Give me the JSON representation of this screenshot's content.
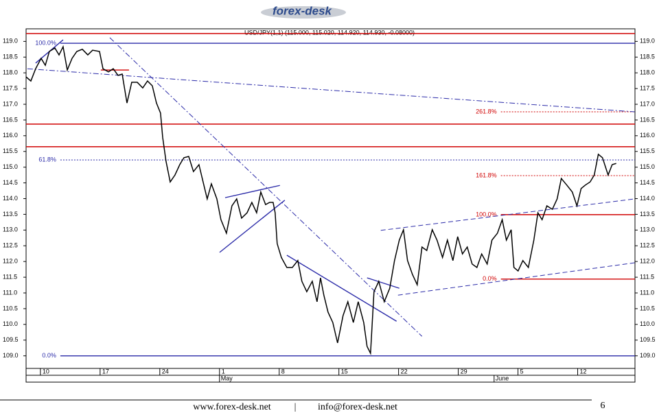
{
  "logo": "forex-desk",
  "chart_data": {
    "type": "line",
    "title": "USD/JPY(1,1) (115.000, 115.020, 114.920, 114.930, -0.08000)",
    "color": "#000000",
    "x": [
      -1.2,
      -0.8,
      -0.4,
      0.06,
      0.41,
      0.75,
      1.21,
      1.56,
      1.9,
      2.25,
      2.65,
      3.05,
      3.51,
      3.97,
      4.37,
      4.95,
      5.24,
      5.7,
      6.1,
      6.5,
      6.85,
      7.25,
      7.65,
      8.11,
      8.57,
      8.97,
      9.37,
      9.72,
      10.06,
      10.24,
      10.52,
      10.87,
      11.27,
      11.67,
      12.02,
      12.42,
      12.82,
      13.28,
      13.69,
      13.97,
      14.32,
      14.78,
      15.12,
      15.58,
      16.04,
      16.44,
      16.85,
      17.31,
      17.71,
      18.11,
      18.46,
      18.86,
      19.2,
      19.49,
      19.66,
      19.83,
      20.18,
      20.64,
      21.1,
      21.56,
      21.9,
      22.31,
      22.77,
      23.17,
      23.46,
      23.74,
      24.09,
      24.49,
      24.89,
      25.35,
      25.75,
      26.21,
      26.62,
      27.08,
      27.36,
      27.65,
      27.94,
      28.34,
      28.8,
      29.26,
      29.66,
      30.06,
      30.41,
      30.75,
      31.16,
      31.56,
      31.96,
      32.36,
      32.82,
      33.22,
      33.68,
      34.09,
      34.55,
      34.95,
      35.35,
      35.75,
      36.16,
      36.56,
      36.96,
      37.42,
      37.82,
      38.28,
      38.68,
      39.03,
      39.43,
      39.66,
      40.01,
      40.41,
      40.87,
      41.33,
      41.67,
      42.02,
      42.42,
      42.88,
      43.28,
      43.63,
      44.09,
      44.55,
      44.94,
      45.29,
      45.64,
      46.04,
      46.39,
      46.73,
      47.08,
      47.55,
      47.89,
      48.23
    ],
    "values": [
      117.87,
      117.74,
      118.13,
      118.46,
      118.24,
      118.68,
      118.79,
      118.57,
      118.83,
      118.09,
      118.46,
      118.68,
      118.75,
      118.57,
      118.72,
      118.68,
      118.13,
      118.03,
      118.13,
      117.92,
      117.96,
      117.04,
      117.7,
      117.7,
      117.52,
      117.74,
      117.59,
      117.04,
      116.72,
      115.95,
      115.19,
      114.53,
      114.75,
      115.08,
      115.3,
      115.34,
      114.86,
      115.08,
      114.43,
      113.99,
      114.47,
      113.99,
      113.33,
      112.9,
      113.77,
      113.99,
      113.38,
      113.55,
      113.88,
      113.55,
      114.21,
      113.81,
      113.88,
      113.88,
      113.55,
      112.57,
      112.13,
      111.81,
      111.81,
      112.03,
      111.37,
      111.04,
      111.37,
      110.72,
      111.48,
      110.93,
      110.39,
      110.06,
      109.41,
      110.28,
      110.72,
      110.06,
      110.72,
      110.06,
      109.3,
      109.08,
      111.04,
      111.37,
      110.72,
      111.15,
      112.03,
      112.68,
      113.01,
      112.03,
      111.59,
      111.26,
      112.46,
      112.35,
      113.01,
      112.68,
      112.13,
      112.68,
      112.03,
      112.79,
      112.24,
      112.46,
      111.92,
      111.81,
      112.24,
      111.92,
      112.68,
      112.9,
      113.33,
      112.68,
      113.01,
      111.81,
      111.7,
      112.03,
      111.81,
      112.68,
      113.55,
      113.33,
      113.77,
      113.66,
      113.99,
      114.64,
      114.43,
      114.21,
      113.77,
      114.32,
      114.43,
      114.53,
      114.75,
      115.41,
      115.3,
      114.75,
      115.08,
      115.12
    ],
    "xlim": [
      -1.2,
      49.8
    ],
    "ylim": [
      108.6,
      119.4
    ],
    "xticks": [
      {
        "value": 0,
        "label": "10"
      },
      {
        "value": 5,
        "label": "17"
      },
      {
        "value": 10,
        "label": "24"
      },
      {
        "value": 15,
        "label": "1"
      },
      {
        "value": 20,
        "label": "8"
      },
      {
        "value": 25,
        "label": "15"
      },
      {
        "value": 30,
        "label": "22"
      },
      {
        "value": 35,
        "label": "29"
      },
      {
        "value": 40,
        "label": "5"
      },
      {
        "value": 45,
        "label": "12"
      }
    ],
    "month_ticks": [
      {
        "value": 15,
        "label": "May"
      },
      {
        "value": 38,
        "label": "June"
      }
    ],
    "yticks": [
      {
        "value": 109,
        "label": "109.0"
      },
      {
        "value": 109.5,
        "label": "109.5"
      },
      {
        "value": 110,
        "label": "110.0"
      },
      {
        "value": 110.5,
        "label": "110.5"
      },
      {
        "value": 111,
        "label": "111.0"
      },
      {
        "value": 111.5,
        "label": "111.5"
      },
      {
        "value": 112,
        "label": "112.0"
      },
      {
        "value": 112.5,
        "label": "112.5"
      },
      {
        "value": 113,
        "label": "113.0"
      },
      {
        "value": 113.5,
        "label": "113.5"
      },
      {
        "value": 114,
        "label": "114.0"
      },
      {
        "value": 114.5,
        "label": "114.5"
      },
      {
        "value": 115,
        "label": "115.0"
      },
      {
        "value": 115.5,
        "label": "115.5"
      },
      {
        "value": 116,
        "label": "116.0"
      },
      {
        "value": 116.5,
        "label": "116.5"
      },
      {
        "value": 117,
        "label": "117.0"
      },
      {
        "value": 117.5,
        "label": "117.5"
      },
      {
        "value": 118,
        "label": "118.0"
      },
      {
        "value": 118.5,
        "label": "118.5"
      },
      {
        "value": 119,
        "label": "119.0"
      }
    ],
    "lines": [
      {
        "x": [
          -1.2,
          49.8
        ],
        "y": [
          119.25,
          119.25
        ],
        "color": "#d00000",
        "style": "solid"
      },
      {
        "x": [
          1.67,
          49.8
        ],
        "y": [
          118.94,
          118.94
        ],
        "color": "#2a2aa8",
        "style": "solid",
        "label": "100.0%"
      },
      {
        "x": [
          -1.2,
          49.8
        ],
        "y": [
          116.37,
          116.37
        ],
        "color": "#d00000",
        "style": "solid"
      },
      {
        "x": [
          -1.2,
          49.8
        ],
        "y": [
          115.65,
          115.65
        ],
        "color": "#d00000",
        "style": "solid"
      },
      {
        "x": [
          1.67,
          49.8
        ],
        "y": [
          115.23,
          115.23
        ],
        "color": "#2a2aa8",
        "style": "dotted",
        "label": "61.8%"
      },
      {
        "x": [
          1.67,
          49.8
        ],
        "y": [
          109.0,
          109.0
        ],
        "color": "#2a2aa8",
        "style": "solid",
        "label": "0.0%"
      },
      {
        "x": [
          38.57,
          49.8
        ],
        "y": [
          116.76,
          116.76
        ],
        "color": "#d00000",
        "style": "dotted",
        "label": "261.8%"
      },
      {
        "x": [
          38.57,
          49.8
        ],
        "y": [
          114.73,
          114.73
        ],
        "color": "#d00000",
        "style": "dotted",
        "label": "161.8%"
      },
      {
        "x": [
          38.57,
          49.8
        ],
        "y": [
          113.49,
          113.49
        ],
        "color": "#d00000",
        "style": "solid",
        "label": "100.0%"
      },
      {
        "x": [
          38.57,
          49.8
        ],
        "y": [
          111.44,
          111.44
        ],
        "color": "#d00000",
        "style": "solid",
        "label": "0.0%"
      },
      {
        "x": [
          5.06,
          7.42
        ],
        "y": [
          118.09,
          118.09
        ],
        "color": "#d00000",
        "style": "solid"
      },
      {
        "x": [
          5.81,
          31.96
        ],
        "y": [
          119.12,
          109.62
        ],
        "color": "#2a2aa8",
        "style": "dash-dot"
      },
      {
        "x": [
          -1.09,
          49.78
        ],
        "y": [
          118.13,
          116.76
        ],
        "color": "#2a2aa8",
        "style": "dash-dot"
      },
      {
        "x": [
          -0.4,
          1.9
        ],
        "y": [
          118.31,
          119.05
        ],
        "color": "#2a2aa8",
        "style": "solid"
      },
      {
        "x": [
          15.47,
          20.06
        ],
        "y": [
          114.03,
          114.42
        ],
        "color": "#2a2aa8",
        "style": "solid"
      },
      {
        "x": [
          15.01,
          20.47
        ],
        "y": [
          112.29,
          113.95
        ],
        "color": "#2a2aa8",
        "style": "solid"
      },
      {
        "x": [
          20.64,
          29.83
        ],
        "y": [
          112.2,
          110.1
        ],
        "color": "#2a2aa8",
        "style": "solid"
      },
      {
        "x": [
          27.36,
          30.06
        ],
        "y": [
          111.48,
          111.15
        ],
        "color": "#2a2aa8",
        "style": "solid"
      },
      {
        "x": [
          28.51,
          49.78
        ],
        "y": [
          112.99,
          113.99
        ],
        "color": "#2a2aa8",
        "style": "dashed"
      },
      {
        "x": [
          29.95,
          49.78
        ],
        "y": [
          110.93,
          111.96
        ],
        "color": "#2a2aa8",
        "style": "dashed"
      }
    ]
  },
  "footer": {
    "website": "www.forex-desk.net",
    "separator": "|",
    "email": "info@forex-desk.net",
    "page": 6
  }
}
